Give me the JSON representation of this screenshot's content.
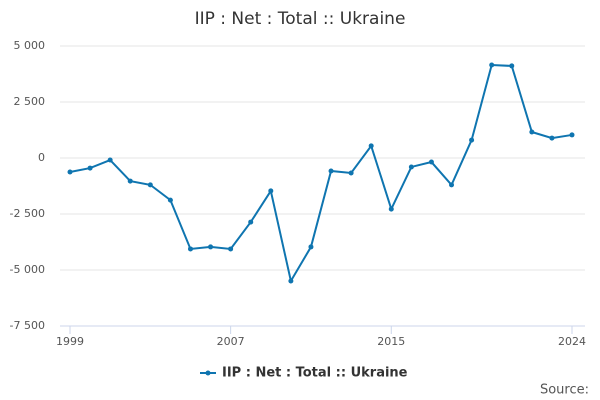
{
  "chart_data": {
    "type": "line",
    "title": "IIP : Net : Total :: Ukraine",
    "x": [
      1999,
      2000,
      2001,
      2002,
      2003,
      2004,
      2005,
      2006,
      2007,
      2008,
      2009,
      2010,
      2011,
      2012,
      2013,
      2014,
      2015,
      2016,
      2017,
      2018,
      2019,
      2020,
      2021,
      2022,
      2023,
      2024
    ],
    "series": [
      {
        "name": "IIP : Net : Total :: Ukraine",
        "color": "#0f75b0",
        "values": [
          -625,
          -450,
          -90,
          -1030,
          -1200,
          -1880,
          -4060,
          -3970,
          -4060,
          -2860,
          -1470,
          -5490,
          -3970,
          -580,
          -670,
          540,
          -2280,
          -400,
          -180,
          -1200,
          800,
          4150,
          4110,
          1160,
          890,
          1030
        ]
      }
    ],
    "xlim": [
      1999,
      2024
    ],
    "xticks": [
      1999,
      2007,
      2015,
      2024
    ],
    "ylim": [
      -7500,
      5000
    ],
    "yticks": [
      {
        "value": -7500,
        "label": "-7 500"
      },
      {
        "value": -5000,
        "label": "-5 000"
      },
      {
        "value": -2500,
        "label": "-2 500"
      },
      0,
      {
        "value": 2500,
        "label": "2 500"
      },
      {
        "value": 5000,
        "label": "5 000"
      }
    ],
    "grid": true,
    "legend": "bottom",
    "source_label": "Source:"
  }
}
